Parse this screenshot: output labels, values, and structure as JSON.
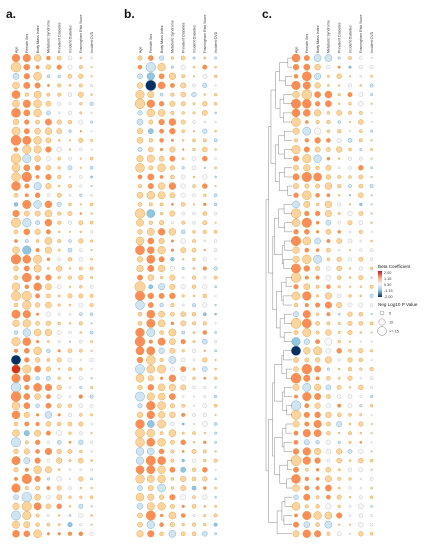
{
  "chart_data": [
    {
      "type": "bubble-matrix",
      "panel": "a.",
      "columns": [
        "Age",
        "Female Sex",
        "Body Mass Index",
        "Metabolic Syndrome",
        "Prevalent Diabetes",
        "Incident Diabetes",
        "Framingham Risk Score",
        "Incident CVD"
      ],
      "rows": 53,
      "values": "coefficient and significance per cell, estimated from circle color and size"
    },
    {
      "type": "bubble-matrix",
      "panel": "b.",
      "columns": [
        "Age",
        "Female Sex",
        "Body Mass Index",
        "Metabolic Syndrome",
        "Prevalent Diabetes",
        "Incident Diabetes",
        "Framingham Risk Score",
        "Incident CVD"
      ],
      "rows": 53
    },
    {
      "type": "bubble-matrix",
      "panel": "c.",
      "columns": [
        "Age",
        "Female Sex",
        "Body Mass Index",
        "Metabolic Syndrome",
        "Prevalent Diabetes",
        "Incident Diabetes",
        "Framingham Risk Score",
        "Incident CVD"
      ],
      "rows": 53,
      "dendrogram": true
    }
  ],
  "legend": {
    "color_title": "Beta Coefficient",
    "color_ticks": [
      "2.00",
      "1.15",
      "0.30",
      "-1.15",
      "-2.00"
    ],
    "size_title": "Neg Log10 P Value",
    "size_ticks": [
      "5",
      "10",
      ">= 15"
    ]
  },
  "colors": {
    "strong_positive": "#d7301f",
    "positive": "#fc8d59",
    "weak_positive": "#fdd49e",
    "neutral": "#f7f7f7",
    "weak_negative": "#d1e5f0",
    "negative": "#92c5de",
    "strong_negative": "#053061"
  }
}
